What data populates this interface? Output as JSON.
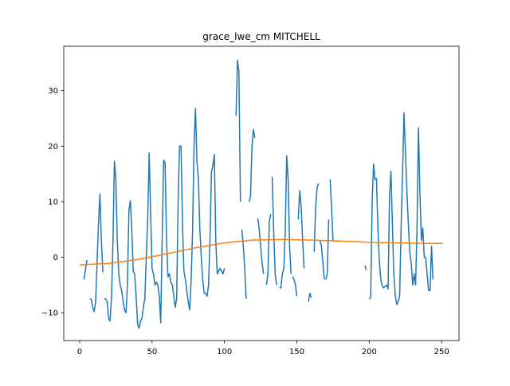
{
  "chart_data": {
    "type": "line",
    "title": "grace_lwe_cm MITCHELL",
    "xlabel": "",
    "ylabel": "",
    "xlim": [
      -11,
      262
    ],
    "ylim": [
      -15,
      38
    ],
    "xticks": [
      0,
      50,
      100,
      150,
      200,
      250
    ],
    "yticks": [
      -10,
      0,
      10,
      20,
      30
    ],
    "grid": false,
    "legend": "none",
    "series": [
      {
        "color": "#1f77b4",
        "points": [
          [
            3,
            -4
          ],
          [
            5,
            -0.5
          ],
          [
            null,
            null
          ],
          [
            7,
            -7.5
          ],
          [
            8,
            -7.6
          ],
          [
            9,
            -9
          ],
          [
            10,
            -9.8
          ],
          [
            11,
            -8
          ],
          [
            12,
            -1
          ],
          [
            13,
            6
          ],
          [
            14,
            11.4
          ],
          [
            15,
            3
          ],
          [
            16,
            -2.7
          ],
          [
            null,
            null
          ],
          [
            17,
            -7.5
          ],
          [
            18,
            -7.5
          ],
          [
            19,
            -8
          ],
          [
            20,
            -11
          ],
          [
            21,
            -11.5
          ],
          [
            22,
            -7
          ],
          [
            23,
            3
          ],
          [
            24,
            17.3
          ],
          [
            25,
            14
          ],
          [
            26,
            3
          ],
          [
            27,
            -3
          ],
          [
            28,
            -5
          ],
          [
            29,
            -6
          ],
          [
            30,
            -8
          ],
          [
            31,
            -9.5
          ],
          [
            32,
            -10
          ],
          [
            33,
            -5
          ],
          [
            34,
            8.5
          ],
          [
            35,
            10.2
          ],
          [
            36,
            5
          ],
          [
            37,
            -2.5
          ],
          [
            38,
            -3
          ],
          [
            39,
            -7
          ],
          [
            40,
            -12
          ],
          [
            41,
            -12.8
          ],
          [
            42,
            -11.5
          ],
          [
            43,
            -11
          ],
          [
            44,
            -9
          ],
          [
            45,
            -7.5
          ],
          [
            46,
            0
          ],
          [
            47,
            7
          ],
          [
            48,
            18.8
          ],
          [
            49,
            8
          ],
          [
            50,
            -2
          ],
          [
            51,
            -3
          ],
          [
            52,
            -5
          ],
          [
            53,
            -4.5
          ],
          [
            54,
            -5
          ],
          [
            55,
            -7
          ],
          [
            56,
            -11.8
          ],
          [
            57,
            3
          ],
          [
            58,
            17.5
          ],
          [
            59,
            17
          ],
          [
            60,
            3
          ],
          [
            61,
            -3.5
          ],
          [
            62,
            -3
          ],
          [
            63,
            -4.5
          ],
          [
            64,
            -5
          ],
          [
            65,
            -7
          ],
          [
            66,
            -9
          ],
          [
            67,
            -7.5
          ],
          [
            68,
            10
          ],
          [
            69,
            20
          ],
          [
            70,
            20
          ],
          [
            71,
            6
          ],
          [
            72,
            -2.5
          ],
          [
            73,
            -4
          ],
          [
            74,
            -6
          ],
          [
            75,
            -8
          ],
          [
            76,
            -9.5
          ],
          [
            77,
            -4
          ],
          [
            78,
            5
          ],
          [
            79,
            20
          ],
          [
            80,
            26.8
          ],
          [
            81,
            17
          ],
          [
            82,
            14
          ],
          [
            83,
            5
          ],
          [
            84,
            0
          ],
          [
            85,
            -4
          ],
          [
            86,
            -6.5
          ],
          [
            87,
            -6.5
          ],
          [
            88,
            -7
          ],
          [
            89,
            -5
          ],
          [
            90,
            3
          ],
          [
            91,
            15.3
          ],
          [
            92,
            16.5
          ],
          [
            93,
            18.5
          ],
          [
            94,
            3
          ],
          [
            95,
            -3
          ],
          [
            96,
            -2.5
          ],
          [
            97,
            -2
          ],
          [
            98,
            -2.5
          ],
          [
            99,
            -3
          ],
          [
            100,
            -2
          ],
          [
            null,
            null
          ],
          [
            108,
            25.5
          ],
          [
            109,
            35.5
          ],
          [
            110,
            33.5
          ],
          [
            111,
            10
          ],
          [
            null,
            null
          ],
          [
            112,
            5
          ],
          [
            113,
            2
          ],
          [
            114,
            -2
          ],
          [
            115,
            -7.5
          ],
          [
            null,
            null
          ],
          [
            117,
            10
          ],
          [
            118,
            11
          ],
          [
            119,
            20
          ],
          [
            120,
            23
          ],
          [
            121,
            21.5
          ],
          [
            null,
            null
          ],
          [
            123,
            7
          ],
          [
            124,
            5
          ],
          [
            125,
            2
          ],
          [
            126,
            -1
          ],
          [
            127,
            -3
          ],
          [
            null,
            null
          ],
          [
            129,
            -5
          ],
          [
            130,
            -3
          ],
          [
            131,
            6.5
          ],
          [
            132,
            7.8
          ],
          [
            null,
            null
          ],
          [
            133,
            14.5
          ],
          [
            134,
            5
          ],
          [
            135,
            -3
          ],
          [
            136,
            -5
          ],
          [
            null,
            null
          ],
          [
            138,
            -5.5
          ],
          [
            139,
            -5.5
          ],
          [
            140,
            -3
          ],
          [
            141,
            -2
          ],
          [
            142,
            5
          ],
          [
            143,
            18.3
          ],
          [
            144,
            14
          ],
          [
            145,
            2
          ],
          [
            146,
            -3
          ],
          [
            null,
            null
          ],
          [
            147,
            -3.5
          ],
          [
            148,
            -4
          ],
          [
            149,
            -5
          ],
          [
            150,
            -7
          ],
          [
            null,
            null
          ],
          [
            151,
            6.8
          ],
          [
            152,
            12
          ],
          [
            153,
            9
          ],
          [
            154,
            3
          ],
          [
            155,
            -2
          ],
          [
            null,
            null
          ],
          [
            158,
            -8
          ],
          [
            159,
            -6.5
          ],
          [
            160,
            -7.3
          ],
          [
            null,
            null
          ],
          [
            162,
            1
          ],
          [
            163,
            9
          ],
          [
            164,
            12.5
          ],
          [
            165,
            13.3
          ],
          [
            null,
            null
          ],
          [
            166,
            3
          ],
          [
            167,
            2
          ],
          [
            168,
            -1
          ],
          [
            169,
            -4
          ],
          [
            null,
            null
          ],
          [
            170,
            -4
          ],
          [
            171,
            -3
          ],
          [
            172,
            6.8
          ],
          [
            null,
            null
          ],
          [
            173,
            14
          ],
          [
            174,
            9
          ],
          [
            175,
            3
          ],
          [
            null,
            null
          ],
          [
            197,
            -1.5
          ],
          [
            198,
            -2.3
          ],
          [
            null,
            null
          ],
          [
            200,
            -7.5
          ],
          [
            201,
            -7.3
          ],
          [
            202,
            10
          ],
          [
            203,
            16.8
          ],
          [
            204,
            14
          ],
          [
            205,
            14.2
          ],
          [
            206,
            5
          ],
          [
            207,
            -1
          ],
          [
            208,
            -4
          ],
          [
            209,
            -5.2
          ],
          [
            210,
            -5.5
          ],
          [
            211,
            -5.3
          ],
          [
            212,
            -5
          ],
          [
            213,
            -5.7
          ],
          [
            214,
            11
          ],
          [
            215,
            15.5
          ],
          [
            216,
            6
          ],
          [
            217,
            -3
          ],
          [
            218,
            -7
          ],
          [
            219,
            -8.5
          ],
          [
            220,
            -8
          ],
          [
            221,
            -7
          ],
          [
            222,
            5
          ],
          [
            223,
            15
          ],
          [
            224,
            26
          ],
          [
            225,
            19
          ],
          [
            226,
            12
          ],
          [
            227,
            6
          ],
          [
            228,
            1
          ],
          [
            229,
            -1
          ],
          [
            230,
            -5
          ],
          [
            231,
            -3
          ],
          [
            232,
            -5
          ],
          [
            233,
            5
          ],
          [
            234,
            23.3
          ],
          [
            235,
            12
          ],
          [
            236,
            3
          ],
          [
            237,
            5.3
          ],
          [
            238,
            0
          ],
          [
            239,
            0
          ],
          [
            240,
            -3
          ],
          [
            241,
            -6
          ],
          [
            242,
            -6
          ],
          [
            243,
            2
          ],
          [
            244,
            -4
          ]
        ]
      },
      {
        "color": "#ff7f0e",
        "points": [
          [
            0,
            -1.4
          ],
          [
            20,
            -1.1
          ],
          [
            40,
            -0.4
          ],
          [
            60,
            0.6
          ],
          [
            80,
            1.7
          ],
          [
            100,
            2.6
          ],
          [
            120,
            3.1
          ],
          [
            140,
            3.2
          ],
          [
            160,
            3.1
          ],
          [
            180,
            2.9
          ],
          [
            200,
            2.7
          ],
          [
            220,
            2.6
          ],
          [
            240,
            2.5
          ],
          [
            251,
            2.5
          ]
        ]
      }
    ]
  }
}
